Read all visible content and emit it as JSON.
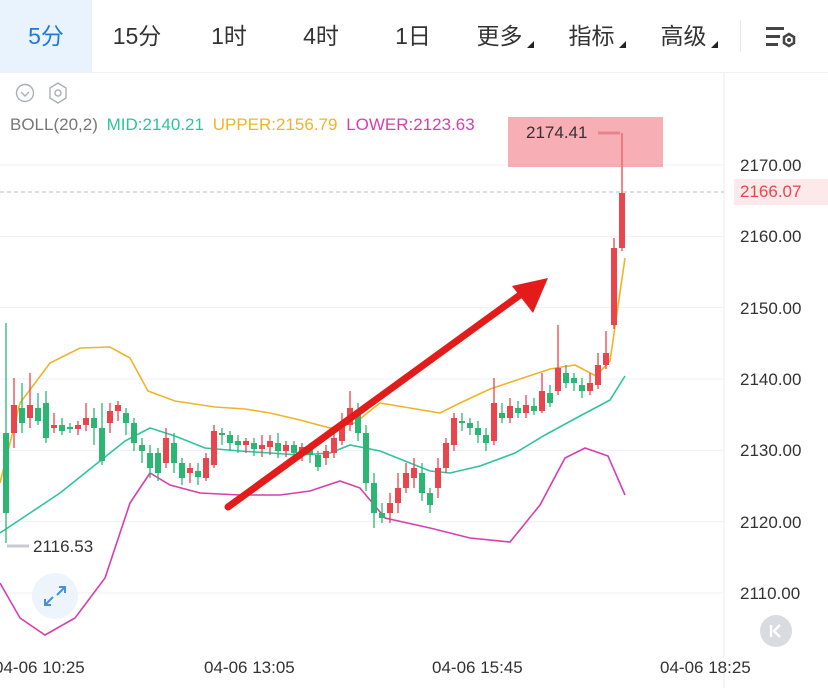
{
  "tabs": [
    {
      "label": "5分",
      "active": true
    },
    {
      "label": "15分",
      "active": false
    },
    {
      "label": "1时",
      "active": false
    },
    {
      "label": "4时",
      "active": false
    },
    {
      "label": "1日",
      "active": false
    },
    {
      "label": "更多",
      "active": false,
      "dropdown": true
    },
    {
      "label": "指标",
      "active": false,
      "dropdown": true
    },
    {
      "label": "高级",
      "active": false,
      "dropdown": true
    }
  ],
  "indicator": {
    "name": "BOLL(20,2)",
    "mid": "MID:2140.21",
    "upper": "UPPER:2156.79",
    "lower": "LOWER:2123.63",
    "colors": {
      "mid": "#2ec4a0",
      "upper": "#f0b429",
      "lower": "#d63fae"
    }
  },
  "price_axis": [
    "2170.00",
    "2160.00",
    "2150.00",
    "2140.00",
    "2130.00",
    "2120.00",
    "2110.00"
  ],
  "last_price": "2166.07",
  "high_marker": "2174.41",
  "low_marker": "2116.53",
  "time_axis": [
    "04-06 10:25",
    "04-06 13:05",
    "04-06 15:45",
    "04-06 18:25"
  ],
  "colors": {
    "up": "#e8454d",
    "down": "#2bb673",
    "accent": "#1f7ae0"
  },
  "icons": [
    "eye-icon",
    "hexagon-settings-icon",
    "chart-settings-icon",
    "expand-icon",
    "back-to-latest-icon"
  ]
}
